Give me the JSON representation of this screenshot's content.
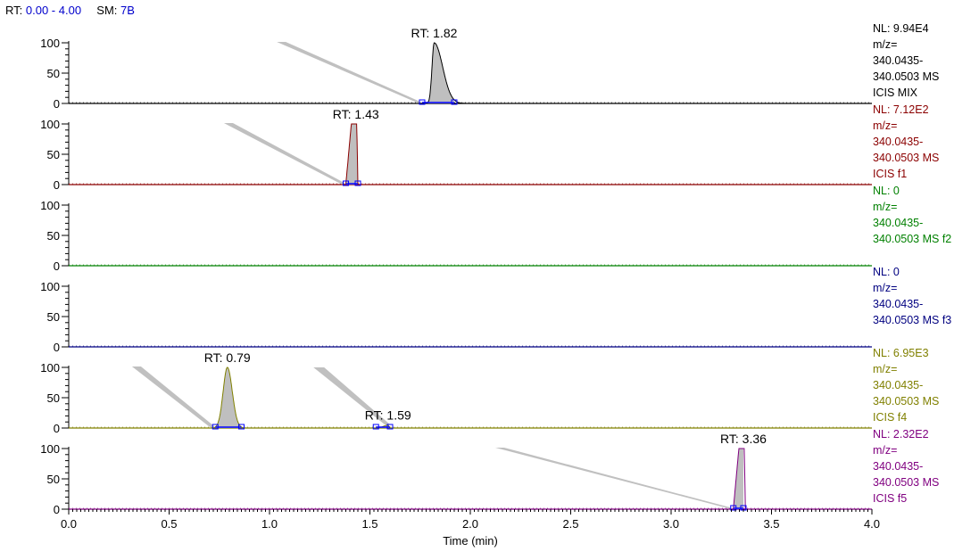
{
  "header": {
    "rt_label": "RT:",
    "rt_range": "0.00 - 4.00",
    "sm_label": "SM:",
    "sm_value": "7B"
  },
  "chart_data": {
    "type": "line",
    "xlabel": "Time (min)",
    "xlim": [
      0.0,
      4.0
    ],
    "x_ticks": [
      "0.0",
      "0.5",
      "1.0",
      "1.5",
      "2.0",
      "2.5",
      "3.0",
      "3.5",
      "4.0"
    ],
    "y_ticks": [
      "0",
      "50",
      "100"
    ],
    "ylim": [
      0,
      100
    ],
    "traces": [
      {
        "color": "#000000",
        "nl": "NL: 9.94E4",
        "lines": [
          "m/z=",
          "340.0435-",
          "340.0503  MS",
          "ICIS MIX"
        ],
        "peaks": [
          {
            "rt": 1.82,
            "label": "RT: 1.82",
            "height": 100,
            "start": 1.76,
            "end": 1.92,
            "shape": "tailing"
          }
        ]
      },
      {
        "color": "#8b0000",
        "nl": "NL: 7.12E2",
        "lines": [
          "m/z=",
          "340.0435-",
          "340.0503  MS",
          "ICIS f1"
        ],
        "peaks": [
          {
            "rt": 1.43,
            "label": "RT: 1.43",
            "height": 100,
            "start": 1.38,
            "end": 1.44,
            "shape": "flat"
          }
        ]
      },
      {
        "color": "#008000",
        "nl": "NL: 0",
        "lines": [
          "m/z=",
          "340.0435-",
          "340.0503  MS f2"
        ],
        "peaks": []
      },
      {
        "color": "#000080",
        "nl": "NL: 0",
        "lines": [
          "m/z=",
          "340.0435-",
          "340.0503  MS f3"
        ],
        "peaks": []
      },
      {
        "color": "#808000",
        "nl": "NL: 6.95E3",
        "lines": [
          "m/z=",
          "340.0435-",
          "340.0503  MS",
          "ICIS f4"
        ],
        "peaks": [
          {
            "rt": 0.79,
            "label": "RT: 0.79",
            "height": 100,
            "start": 0.73,
            "end": 0.86,
            "shape": "gauss"
          },
          {
            "rt": 1.59,
            "label": "RT: 1.59",
            "height": 5,
            "start": 1.53,
            "end": 1.6,
            "shape": "small"
          }
        ]
      },
      {
        "color": "#800080",
        "nl": "NL: 2.32E2",
        "lines": [
          "m/z=",
          "340.0435-",
          "340.0503  MS",
          "ICIS f5"
        ],
        "peaks": [
          {
            "rt": 3.36,
            "label": "RT: 3.36",
            "height": 100,
            "start": 3.31,
            "end": 3.36,
            "shape": "flat"
          }
        ]
      }
    ]
  }
}
